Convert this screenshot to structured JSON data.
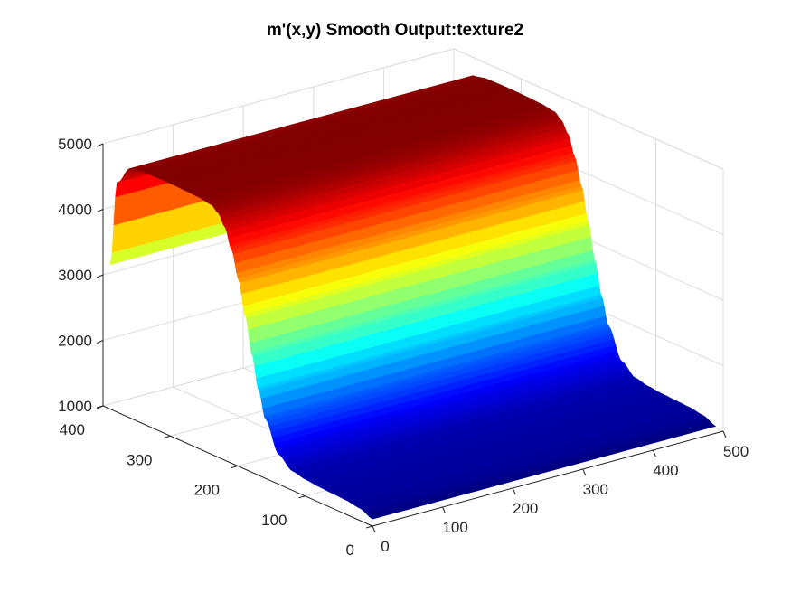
{
  "chart_data": {
    "type": "surface",
    "title": "m'(x,y) Smooth Output:texture2",
    "xlabel": "",
    "ylabel": "",
    "zlabel": "",
    "xlim": [
      0,
      500
    ],
    "ylim": [
      0,
      400
    ],
    "zlim": [
      1000,
      5000
    ],
    "x_ticks": [
      0,
      100,
      200,
      300,
      400,
      500
    ],
    "y_ticks": [
      0,
      100,
      200,
      300,
      400
    ],
    "z_ticks": [
      1000,
      2000,
      3000,
      4000,
      5000
    ],
    "x_tick_labels": [
      "0",
      "100",
      "200",
      "300",
      "400",
      "500"
    ],
    "y_tick_labels": [
      "0",
      "100",
      "200",
      "300",
      "400"
    ],
    "z_tick_labels": [
      "1000",
      "2000",
      "3000",
      "4000",
      "5000"
    ],
    "x_extent": [
      1,
      490
    ],
    "y_extent": [
      1,
      390
    ],
    "colormap": "jet",
    "grid": true,
    "profile_along_y": {
      "y": [
        0,
        20,
        40,
        60,
        80,
        100,
        120,
        140,
        160,
        170,
        180,
        190,
        200,
        210,
        220,
        230,
        240,
        260,
        280,
        300,
        320,
        340,
        360,
        380,
        390
      ],
      "z": [
        1100,
        1180,
        1210,
        1220,
        1230,
        1250,
        1290,
        1450,
        1900,
        2300,
        2800,
        3350,
        3850,
        4250,
        4550,
        4720,
        4800,
        4830,
        4840,
        4845,
        4845,
        4840,
        4800,
        4500,
        3200
      ]
    },
    "z_range": [
      1100,
      4850
    ]
  }
}
